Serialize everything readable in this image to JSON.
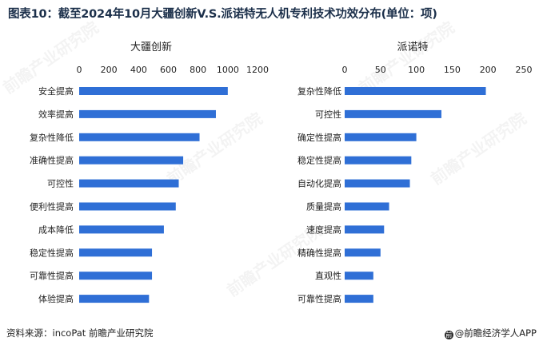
{
  "page": {
    "title": "图表10：截至2024年10月大疆创新V.S.派诺特无人机专利技术功效分布(单位：项)",
    "source": "资料来源：incoPat 前瞻产业研究院",
    "brand": "@前瞻经济学人APP",
    "watermark": "前瞻产业研究院"
  },
  "colors": {
    "bar": "#2f6fd6",
    "axis_text": "#222222",
    "title": "#1b2f4a"
  },
  "chart_data": [
    {
      "type": "bar",
      "orientation": "horizontal",
      "title": "大疆创新",
      "categories": [
        "安全提高",
        "效率提高",
        "复杂性降低",
        "准确性提高",
        "可控性",
        "便利性提高",
        "成本降低",
        "稳定性提高",
        "可靠性提高",
        "体验提高"
      ],
      "values": [
        1000,
        920,
        810,
        700,
        670,
        650,
        570,
        490,
        490,
        470
      ],
      "xlim": [
        0,
        1200
      ],
      "ticks": [
        "0",
        "200",
        "400",
        "600",
        "800",
        "1000",
        "1200"
      ],
      "tick_values": [
        0,
        200,
        400,
        600,
        800,
        1000,
        1200
      ]
    },
    {
      "type": "bar",
      "orientation": "horizontal",
      "title": "派诺特",
      "categories": [
        "复杂性降低",
        "可控性",
        "确定性提高",
        "稳定性提高",
        "自动化提高",
        "质量提高",
        "速度提高",
        "精确性提高",
        "直观性",
        "可靠性提高"
      ],
      "values": [
        197,
        135,
        100,
        93,
        91,
        62,
        55,
        50,
        40,
        40
      ],
      "xlim": [
        0,
        250
      ],
      "ticks": [
        "0",
        "50",
        "100",
        "150",
        "200",
        "250"
      ],
      "tick_values": [
        0,
        50,
        100,
        150,
        200,
        250
      ]
    }
  ]
}
